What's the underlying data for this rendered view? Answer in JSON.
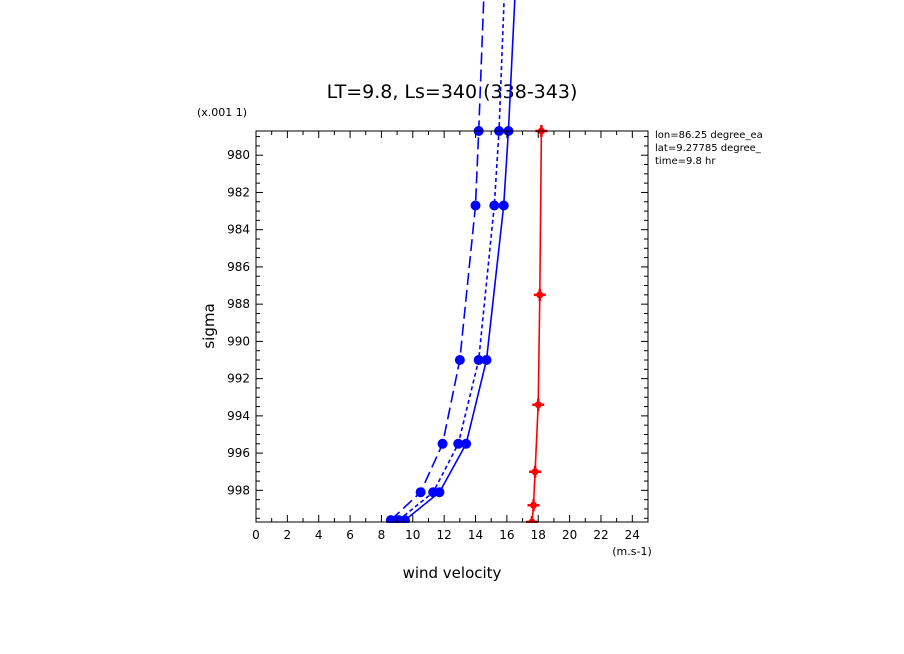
{
  "chart_data": {
    "type": "line",
    "title": "LT=9.8, Ls=340 (338-343)",
    "xlabel": "wind velocity",
    "ylabel": "sigma",
    "x_unit": "(m.s-1)",
    "y_unit": "(x.001 1)",
    "xlim": [
      0,
      25
    ],
    "ylim": [
      999.7,
      978.7
    ],
    "x_ticks": [
      0,
      2,
      4,
      6,
      8,
      10,
      12,
      14,
      16,
      18,
      20,
      22,
      24
    ],
    "y_ticks": [
      980,
      982,
      984,
      986,
      988,
      990,
      992,
      994,
      996,
      998
    ],
    "annotations": [
      "lon=86.25 degree_ea",
      "lat=9.27785 degree_",
      "time=9.8 hr"
    ],
    "series": [
      {
        "style": "long-dash",
        "color": "#0000ff",
        "marker": "dot",
        "x": [
          8.6,
          10.5,
          11.9,
          13.0,
          14.0,
          14.2,
          14.6
        ],
        "y": [
          999.6,
          998.1,
          995.5,
          991.0,
          982.7,
          978.7,
          970.0
        ]
      },
      {
        "style": "dash",
        "color": "#0000ff",
        "marker": "dot",
        "x": [
          9.1,
          11.3,
          12.9,
          14.2,
          15.2,
          15.5,
          15.9
        ],
        "y": [
          999.6,
          998.1,
          995.5,
          991.0,
          982.7,
          978.7,
          970.0
        ]
      },
      {
        "style": "solid",
        "color": "#0000ff",
        "marker": "dot",
        "x": [
          9.5,
          11.7,
          13.4,
          14.7,
          15.8,
          16.1,
          16.6
        ],
        "y": [
          999.6,
          998.1,
          995.5,
          991.0,
          982.7,
          978.7,
          970.0
        ]
      },
      {
        "style": "solid",
        "color": "#ff0000",
        "marker": "plus",
        "x": [
          17.6,
          17.7,
          17.8,
          18.0,
          18.1,
          18.2
        ],
        "y": [
          999.7,
          998.8,
          997.0,
          993.4,
          987.5,
          978.7
        ]
      }
    ]
  }
}
